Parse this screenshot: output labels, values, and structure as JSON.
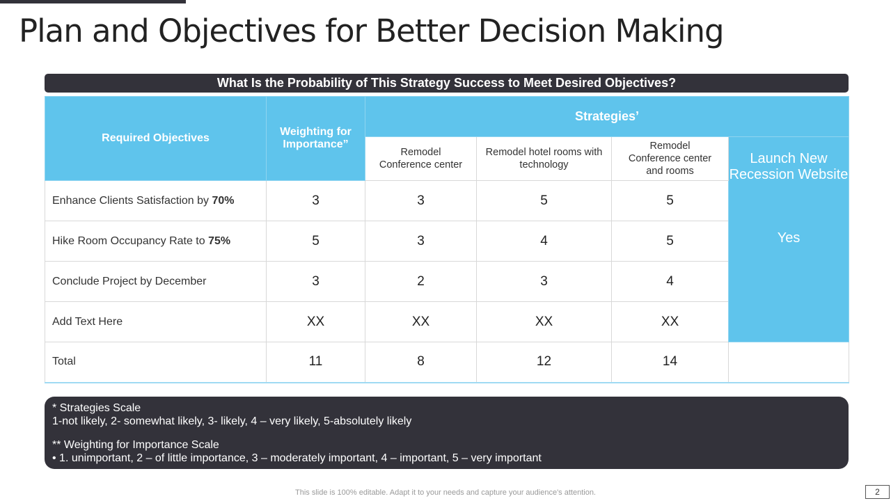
{
  "title": "Plan and Objectives for Better Decision Making",
  "question": "What Is the Probability of This Strategy Success to Meet Desired Objectives?",
  "table": {
    "h_objectives": "Required Objectives",
    "h_weighting": "Weighting for Importance”",
    "h_strategies": "Strategies’",
    "strategies": [
      "Remodel Conference center",
      "Remodel hotel rooms with technology",
      "Remodel Conference center and rooms"
    ],
    "launch": "Launch New Recession Website",
    "launch_value": "Yes",
    "rows": [
      {
        "pre": "Enhance Clients Satisfaction by ",
        "bold": "70%",
        "w": "3",
        "s": [
          "3",
          "5",
          "5"
        ]
      },
      {
        "pre": "Hike Room Occupancy  Rate to ",
        "bold": "75%",
        "w": "5",
        "s": [
          "3",
          "4",
          "5"
        ]
      },
      {
        "pre": "Conclude Project by December",
        "bold": "",
        "w": "3",
        "s": [
          "2",
          "3",
          "4"
        ]
      },
      {
        "pre": "Add Text Here",
        "bold": "",
        "w": "XX",
        "s": [
          "XX",
          "XX",
          "XX"
        ]
      }
    ],
    "total": {
      "label": "Total",
      "w": "11",
      "s": [
        "8",
        "12",
        "14"
      ]
    }
  },
  "notes": {
    "l1": "* Strategies Scale",
    "l2": "1-not likely, 2- somewhat likely, 3- likely, 4 – very likely, 5-absolutely likely",
    "l3": "** Weighting for Importance Scale",
    "l4": "•   1. unimportant,  2 – of little importance, 3 – moderately important,  4 – important,  5 – very important"
  },
  "footer": "This slide is 100% editable. Adapt it to your needs and capture your audience's attention.",
  "page": "2"
}
